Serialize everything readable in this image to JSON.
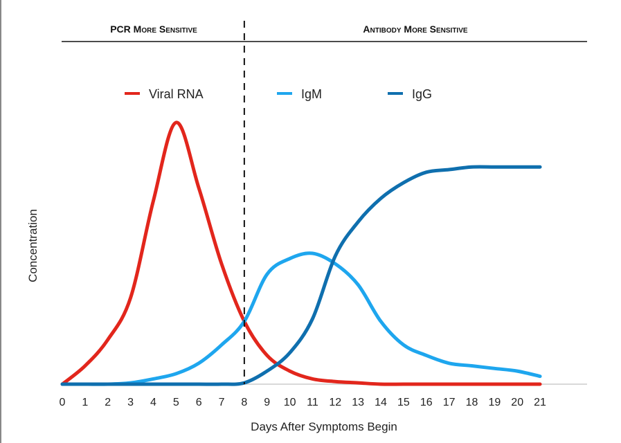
{
  "chart_data": {
    "type": "line",
    "title": "",
    "regions": [
      {
        "label": "PCR More Sensitive",
        "from": 0,
        "to": 8
      },
      {
        "label": "Antibody More Sensitive",
        "from": 8,
        "to": 23
      }
    ],
    "divider_x": 8,
    "xlabel": "Days After Symptoms Begin",
    "ylabel": "Concentration",
    "xlim": [
      0,
      23
    ],
    "ylim": [
      0,
      100
    ],
    "x_ticks": [
      0,
      1,
      2,
      3,
      4,
      5,
      6,
      7,
      8,
      9,
      10,
      11,
      12,
      13,
      14,
      15,
      16,
      17,
      18,
      19,
      20,
      21
    ],
    "legend_position": "top",
    "x": [
      0,
      1,
      2,
      3,
      4,
      5,
      6,
      7,
      8,
      9,
      10,
      11,
      12,
      13,
      14,
      15,
      16,
      17,
      18,
      19,
      20,
      21
    ],
    "series": [
      {
        "name": "Viral RNA",
        "color": "#e2261c",
        "values": [
          0,
          7,
          17,
          33,
          70,
          100,
          75,
          46,
          24,
          11,
          5,
          2,
          1,
          0.5,
          0,
          0,
          0,
          0,
          0,
          0,
          0,
          0
        ]
      },
      {
        "name": "IgM",
        "color": "#1ea6ee",
        "values": [
          0,
          0,
          0,
          0.5,
          2,
          4,
          8,
          15,
          24,
          42,
          48,
          50,
          46,
          38,
          24,
          15,
          11,
          8,
          7,
          6,
          5,
          3
        ]
      },
      {
        "name": "IgG",
        "color": "#0f6fae",
        "values": [
          0,
          0,
          0,
          0,
          0,
          0,
          0,
          0,
          0.5,
          5,
          12,
          25,
          49,
          62,
          71,
          77,
          81,
          82,
          83,
          83,
          83,
          83
        ]
      }
    ]
  }
}
